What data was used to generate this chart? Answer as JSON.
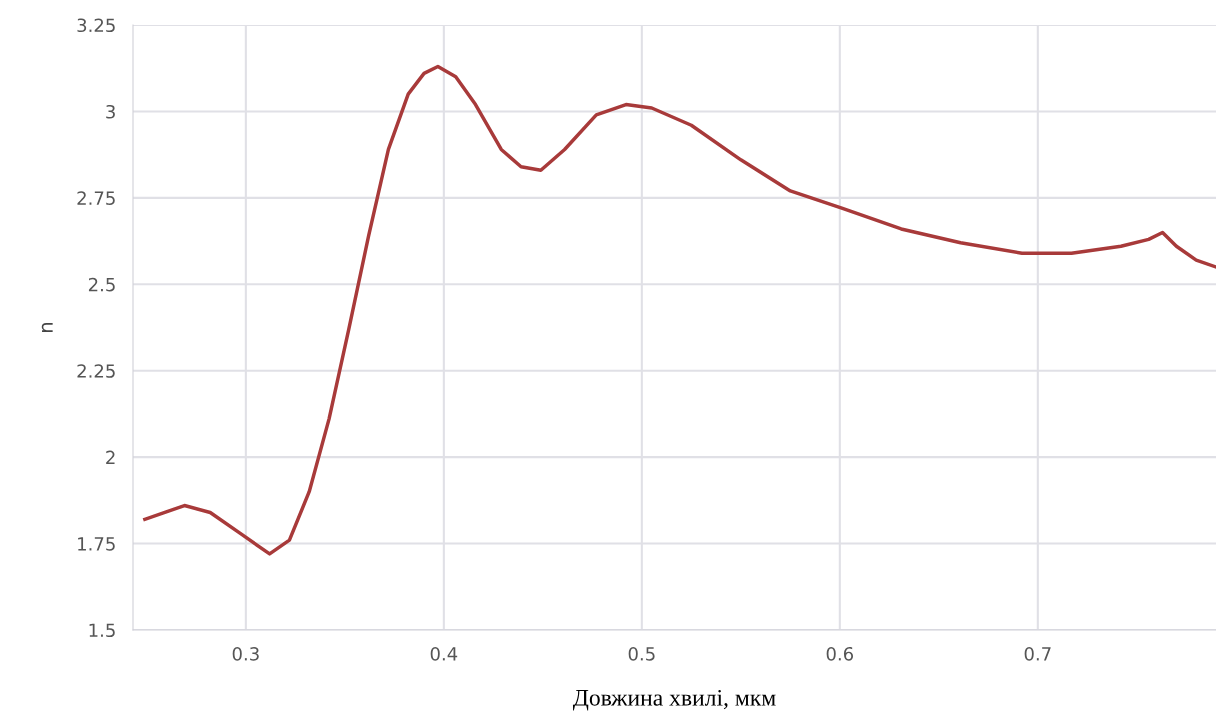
{
  "chart_data": {
    "type": "line",
    "xlabel": "Довжина хвилі, мкм",
    "ylabel": "n",
    "xlim": [
      0.243,
      0.79
    ],
    "ylim": [
      1.5,
      3.25
    ],
    "xticks": [
      0.3,
      0.4,
      0.5,
      0.6,
      0.7
    ],
    "yticks": [
      1.5,
      1.75,
      2,
      2.25,
      2.5,
      2.75,
      3,
      3.25
    ],
    "grid": true,
    "marker": "none",
    "line_style": "solid",
    "series": [
      {
        "color": "#a83a3a",
        "x": [
          0.249,
          0.269,
          0.282,
          0.297,
          0.312,
          0.322,
          0.332,
          0.342,
          0.352,
          0.362,
          0.372,
          0.382,
          0.39,
          0.397,
          0.406,
          0.416,
          0.429,
          0.439,
          0.449,
          0.461,
          0.477,
          0.492,
          0.505,
          0.525,
          0.55,
          0.575,
          0.601,
          0.631,
          0.661,
          0.692,
          0.717,
          0.742,
          0.756,
          0.763,
          0.77,
          0.78,
          0.79
        ],
        "values": [
          1.82,
          1.86,
          1.84,
          1.78,
          1.72,
          1.76,
          1.9,
          2.11,
          2.37,
          2.64,
          2.89,
          3.05,
          3.11,
          3.13,
          3.1,
          3.02,
          2.89,
          2.84,
          2.83,
          2.89,
          2.99,
          3.02,
          3.01,
          2.96,
          2.86,
          2.77,
          2.72,
          2.66,
          2.62,
          2.59,
          2.59,
          2.61,
          2.63,
          2.65,
          2.61,
          2.57,
          2.55
        ]
      }
    ]
  }
}
